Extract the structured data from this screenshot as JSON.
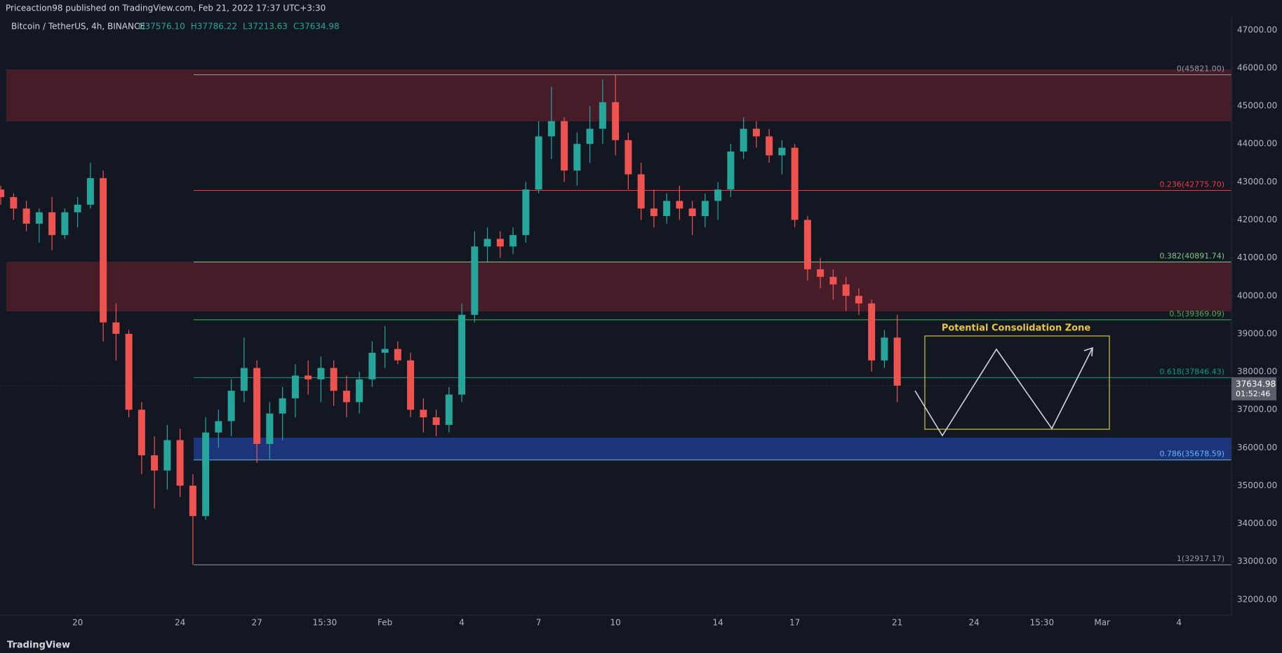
{
  "chart_data": {
    "type": "candlestick",
    "header": "Priceaction98 published on TradingView.com, Feb 21, 2022 17:37 UTC+3:30",
    "symbol": "Bitcoin / TetherUS, 4h, BINANCE",
    "ohlc_labels": [
      "O37576.10",
      "H37786.22",
      "L37213.63",
      "C37634.98"
    ],
    "annotation": "Potential Consolidation Zone",
    "brand": "TradingView",
    "last_price": {
      "value": 37634.98,
      "label": "37634.98"
    },
    "countdown": "01:52:46",
    "up_color": "#26a69a",
    "down_color": "#ef5350",
    "xlim": [
      -3.03,
      45.05
    ],
    "ylim": [
      31591,
      47366
    ],
    "xticks": [
      {
        "value": 0,
        "label": "20"
      },
      {
        "value": 4,
        "label": "24"
      },
      {
        "value": 7,
        "label": "27"
      },
      {
        "value": 9.65,
        "label": "15:30"
      },
      {
        "value": 12,
        "label": "Feb"
      },
      {
        "value": 15,
        "label": "4"
      },
      {
        "value": 18,
        "label": "7"
      },
      {
        "value": 21,
        "label": "10"
      },
      {
        "value": 25,
        "label": "14"
      },
      {
        "value": 28,
        "label": "17"
      },
      {
        "value": 32,
        "label": "21"
      },
      {
        "value": 35,
        "label": "24"
      },
      {
        "value": 37.65,
        "label": "15:30"
      },
      {
        "value": 40,
        "label": "Mar"
      },
      {
        "value": 43,
        "label": "4"
      }
    ],
    "yticks": [
      {
        "value": 32000,
        "label": "32000.00"
      },
      {
        "value": 33000,
        "label": "33000.00"
      },
      {
        "value": 34000,
        "label": "34000.00"
      },
      {
        "value": 35000,
        "label": "35000.00"
      },
      {
        "value": 36000,
        "label": "36000.00"
      },
      {
        "value": 37000,
        "label": "37000.00"
      },
      {
        "value": 38000,
        "label": "38000.00"
      },
      {
        "value": 39000,
        "label": "39000.00"
      },
      {
        "value": 40000,
        "label": "40000.00"
      },
      {
        "value": 41000,
        "label": "41000.00"
      },
      {
        "value": 42000,
        "label": "42000.00"
      },
      {
        "value": 43000,
        "label": "43000.00"
      },
      {
        "value": 44000,
        "label": "44000.00"
      },
      {
        "value": 45000,
        "label": "45000.00"
      },
      {
        "value": 46000,
        "label": "46000.00"
      },
      {
        "value": 47000,
        "label": "47000.00"
      }
    ],
    "fib_levels": [
      {
        "value": 45821.0,
        "label": "0(45821.00)",
        "color": "#9598a1"
      },
      {
        "value": 42775.7,
        "label": "0.236(42775.70)",
        "color": "#f23645"
      },
      {
        "value": 40891.74,
        "label": "0.382(40891.74)",
        "color": "#81c784"
      },
      {
        "value": 39369.09,
        "label": "0.5(39369.09)",
        "color": "#4caf50"
      },
      {
        "value": 37846.43,
        "label": "0.618(37846.43)",
        "color": "#089981"
      },
      {
        "value": 35678.59,
        "label": "0.786(35678.59)",
        "color": "#64b5f6"
      },
      {
        "value": 32917.17,
        "label": "1(32917.17)",
        "color": "#9598a1"
      }
    ],
    "x": [
      -3,
      -2.5,
      -2,
      -1.5,
      -1,
      -0.5,
      0,
      0.5,
      1,
      1.5,
      2,
      2.5,
      3,
      3.5,
      4,
      4.5,
      5,
      5.5,
      6,
      6.5,
      7,
      7.5,
      8,
      8.5,
      9,
      9.5,
      10,
      10.5,
      11,
      11.5,
      12,
      12.5,
      13,
      13.5,
      14,
      14.5,
      15,
      15.5,
      16,
      16.5,
      17,
      17.5,
      18,
      18.5,
      19,
      19.5,
      20,
      20.5,
      21,
      21.5,
      22,
      22.5,
      23,
      23.5,
      24,
      24.5,
      25,
      25.5,
      26,
      26.5,
      27,
      27.5,
      28,
      28.5,
      29,
      29.5,
      30,
      30.5,
      31,
      31.5,
      32
    ],
    "open": [
      42800,
      42600,
      42300,
      41900,
      42200,
      41600,
      42200,
      42400,
      43100,
      39300,
      39000,
      37000,
      35800,
      35400,
      36200,
      35000,
      34200,
      36400,
      36700,
      37500,
      38100,
      36100,
      36900,
      37300,
      37900,
      37800,
      38100,
      37500,
      37200,
      37800,
      38500,
      38600,
      38300,
      37000,
      36800,
      36600,
      37400,
      39500,
      41300,
      41500,
      41300,
      41600,
      42800,
      44200,
      44600,
      43300,
      44000,
      44400,
      45100,
      44100,
      43200,
      42300,
      42100,
      42500,
      42300,
      42100,
      42500,
      42800,
      43800,
      44400,
      44200,
      43700,
      43900,
      42000,
      40700,
      40500,
      40300,
      40000,
      39800,
      38300,
      38900
    ],
    "high": [
      42900,
      42700,
      42500,
      42300,
      42600,
      42300,
      42600,
      43500,
      43300,
      39800,
      39100,
      37200,
      36300,
      36600,
      36500,
      35300,
      36800,
      37000,
      37800,
      38900,
      38300,
      37200,
      37600,
      38200,
      38300,
      38400,
      38300,
      37900,
      38000,
      38800,
      39200,
      38800,
      38500,
      37300,
      37000,
      37600,
      39800,
      41700,
      41800,
      41700,
      41800,
      43000,
      44600,
      45500,
      44700,
      44300,
      45000,
      45700,
      45821,
      44300,
      43500,
      42800,
      42700,
      42900,
      42500,
      42700,
      43000,
      44000,
      44700,
      44600,
      44400,
      44100,
      44000,
      42100,
      41000,
      40700,
      40500,
      40200,
      39900,
      39100,
      39500
    ],
    "low": [
      42400,
      42000,
      41700,
      41400,
      41200,
      41500,
      41800,
      42300,
      38800,
      38300,
      36800,
      35300,
      34400,
      34900,
      34700,
      32917,
      34100,
      36000,
      36300,
      37200,
      35600,
      35700,
      36200,
      36800,
      37400,
      37200,
      37100,
      36800,
      36900,
      37600,
      38100,
      38200,
      36800,
      36400,
      36300,
      36400,
      37200,
      39300,
      40900,
      41000,
      41100,
      41400,
      42700,
      43600,
      43000,
      42900,
      43500,
      44000,
      43700,
      42800,
      42000,
      41800,
      41900,
      42000,
      41600,
      41800,
      42000,
      42600,
      43600,
      43900,
      43500,
      43200,
      41800,
      40400,
      40200,
      39900,
      39600,
      39500,
      38000,
      38100,
      37200
    ],
    "close": [
      42600,
      42300,
      41900,
      42200,
      41600,
      42200,
      42400,
      43100,
      39300,
      39000,
      37000,
      35800,
      35400,
      36200,
      35000,
      34200,
      36400,
      36700,
      37500,
      38100,
      36100,
      36900,
      37300,
      37900,
      37800,
      38100,
      37500,
      37200,
      37800,
      38500,
      38600,
      38300,
      37000,
      36800,
      36600,
      37400,
      39500,
      41300,
      41500,
      41300,
      41600,
      42800,
      44200,
      44600,
      43300,
      44000,
      44400,
      45100,
      44100,
      43200,
      42300,
      42100,
      42500,
      42300,
      42100,
      42500,
      42800,
      43800,
      44400,
      44200,
      43700,
      43900,
      42000,
      40700,
      40500,
      40300,
      40000,
      39800,
      38300,
      38900,
      37634.98
    ]
  }
}
